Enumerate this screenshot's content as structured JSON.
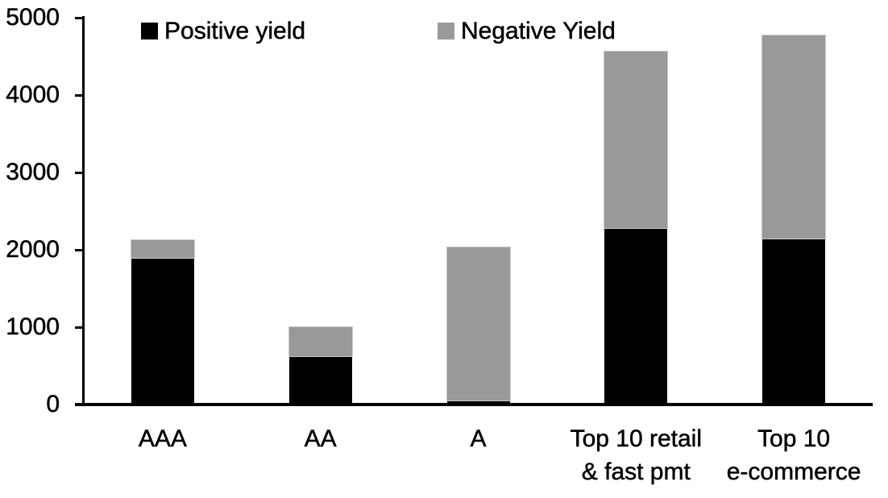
{
  "chart_data": {
    "type": "bar",
    "stacked": true,
    "title": "",
    "xlabel": "",
    "ylabel": "",
    "categories": [
      "AAA",
      "AA",
      "A",
      "Top 10 retail\n& fast pmt",
      "Top 10\ne-commerce"
    ],
    "series": [
      {
        "name": "Positive yield",
        "color": "#000000",
        "values": [
          1900,
          620,
          50,
          2280,
          2150
        ]
      },
      {
        "name": "Negative Yield",
        "color": "#999999",
        "values": [
          220,
          380,
          1980,
          2280,
          2620
        ]
      }
    ],
    "totals": [
      2120,
      1000,
      2030,
      4560,
      4770
    ],
    "ylim": [
      0,
      5000
    ],
    "yticks": [
      0,
      1000,
      2000,
      3000,
      4000,
      5000
    ],
    "grid": false,
    "legend_position": "top-inside",
    "background_color": "#ffffff",
    "axis_color": "#000000"
  }
}
